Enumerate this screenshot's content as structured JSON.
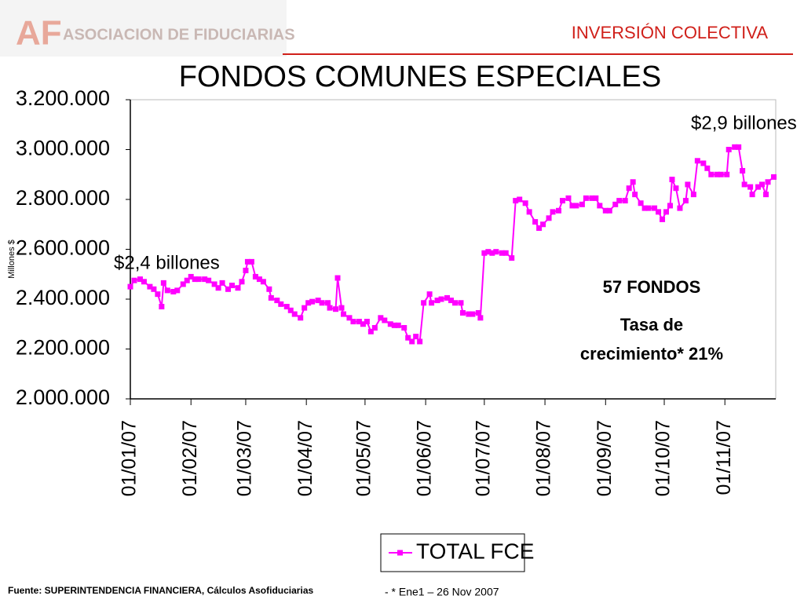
{
  "header": {
    "logo_mark": "AF",
    "logo_text": "ASOCIACION DE FIDUCIARIAS",
    "section": "INVERSIÓN COLECTIVA"
  },
  "footer": {
    "source": "Fuente: SUPERINTENDENCIA FINANCIERA, Cálculos Asofiduciarias",
    "note": "- * Ene1 – 26 Nov 2007"
  },
  "chart_data": {
    "type": "line",
    "title": "FONDOS COMUNES ESPECIALES",
    "y_label": "Millones $",
    "annotations": [
      "$2,4 billones",
      "$2,9 billones"
    ],
    "text_box": [
      "57 FONDOS",
      "Tasa de",
      "crecimiento* 21%"
    ],
    "legend": "bottom",
    "marker": "square",
    "xlim": [
      "2007-01-01",
      "2007-11-27"
    ],
    "xticks": [
      {
        "value": "2007-01-01",
        "label": "01/01/07"
      },
      {
        "value": "2007-02-01",
        "label": "01/02/07"
      },
      {
        "value": "2007-03-01",
        "label": "01/03/07"
      },
      {
        "value": "2007-04-01",
        "label": "01/04/07"
      },
      {
        "value": "2007-05-01",
        "label": "01/05/07"
      },
      {
        "value": "2007-06-01",
        "label": "01/06/07"
      },
      {
        "value": "2007-07-01",
        "label": "01/07/07"
      },
      {
        "value": "2007-08-01",
        "label": "01/08/07"
      },
      {
        "value": "2007-09-01",
        "label": "01/09/07"
      },
      {
        "value": "2007-10-01",
        "label": "01/10/07"
      },
      {
        "value": "2007-11-01",
        "label": "01/11/07"
      }
    ],
    "ylim": [
      2000000,
      3200000
    ],
    "yticks": [
      {
        "value": 2000000,
        "label": "2.000.000"
      },
      {
        "value": 2200000,
        "label": "2.200.000"
      },
      {
        "value": 2400000,
        "label": "2.400.000"
      },
      {
        "value": 2600000,
        "label": "2.600.000"
      },
      {
        "value": 2800000,
        "label": "2.800.000"
      },
      {
        "value": 3000000,
        "label": "3.000.000"
      },
      {
        "value": 3200000,
        "label": "3.200.000"
      }
    ],
    "x": [
      "2007-01-01",
      "2007-01-03",
      "2007-01-06",
      "2007-01-08",
      "2007-01-11",
      "2007-01-13",
      "2007-01-15",
      "2007-01-17",
      "2007-01-18",
      "2007-01-20",
      "2007-01-23",
      "2007-01-25",
      "2007-01-28",
      "2007-01-30",
      "2007-02-01",
      "2007-02-03",
      "2007-02-05",
      "2007-02-08",
      "2007-02-10",
      "2007-02-13",
      "2007-02-15",
      "2007-02-17",
      "2007-02-20",
      "2007-02-22",
      "2007-02-25",
      "2007-02-27",
      "2007-03-01",
      "2007-03-02",
      "2007-03-04",
      "2007-03-06",
      "2007-03-08",
      "2007-03-10",
      "2007-03-13",
      "2007-03-14",
      "2007-03-17",
      "2007-03-19",
      "2007-03-22",
      "2007-03-24",
      "2007-03-26",
      "2007-03-29",
      "2007-03-31",
      "2007-04-02",
      "2007-04-04",
      "2007-04-07",
      "2007-04-09",
      "2007-04-12",
      "2007-04-13",
      "2007-04-16",
      "2007-04-17",
      "2007-04-19",
      "2007-04-20",
      "2007-04-23",
      "2007-04-25",
      "2007-04-28",
      "2007-04-30",
      "2007-05-02",
      "2007-05-04",
      "2007-05-06",
      "2007-05-09",
      "2007-05-11",
      "2007-05-14",
      "2007-05-16",
      "2007-05-18",
      "2007-05-21",
      "2007-05-23",
      "2007-05-25",
      "2007-05-27",
      "2007-05-29",
      "2007-05-31",
      "2007-06-03",
      "2007-06-04",
      "2007-06-07",
      "2007-06-09",
      "2007-06-12",
      "2007-06-14",
      "2007-06-16",
      "2007-06-19",
      "2007-06-20",
      "2007-06-23",
      "2007-06-25",
      "2007-06-28",
      "2007-06-29",
      "2007-07-01",
      "2007-07-03",
      "2007-07-05",
      "2007-07-07",
      "2007-07-10",
      "2007-07-12",
      "2007-07-15",
      "2007-07-17",
      "2007-07-19",
      "2007-07-22",
      "2007-07-24",
      "2007-07-27",
      "2007-07-29",
      "2007-07-31",
      "2007-08-03",
      "2007-08-05",
      "2007-08-08",
      "2007-08-10",
      "2007-08-13",
      "2007-08-15",
      "2007-08-17",
      "2007-08-20",
      "2007-08-22",
      "2007-08-25",
      "2007-08-27",
      "2007-08-29",
      "2007-09-01",
      "2007-09-03",
      "2007-09-06",
      "2007-09-08",
      "2007-09-11",
      "2007-09-13",
      "2007-09-15",
      "2007-09-16",
      "2007-09-19",
      "2007-09-21",
      "2007-09-23",
      "2007-09-26",
      "2007-09-28",
      "2007-09-30",
      "2007-10-02",
      "2007-10-04",
      "2007-10-05",
      "2007-10-07",
      "2007-10-09",
      "2007-10-12",
      "2007-10-13",
      "2007-10-16",
      "2007-10-18",
      "2007-10-21",
      "2007-10-23",
      "2007-10-25",
      "2007-10-28",
      "2007-10-30",
      "2007-11-02",
      "2007-11-03",
      "2007-11-06",
      "2007-11-08",
      "2007-11-10",
      "2007-11-11",
      "2007-11-14",
      "2007-11-15",
      "2007-11-18",
      "2007-11-20",
      "2007-11-22",
      "2007-11-23",
      "2007-11-26"
    ],
    "series": [
      {
        "name": "TOTAL FCE",
        "color": "#ff00ff",
        "values": [
          2450000,
          2475000,
          2480000,
          2470000,
          2450000,
          2440000,
          2420000,
          2370000,
          2465000,
          2435000,
          2430000,
          2435000,
          2460000,
          2475000,
          2490000,
          2480000,
          2480000,
          2480000,
          2475000,
          2460000,
          2445000,
          2465000,
          2440000,
          2455000,
          2445000,
          2470000,
          2515000,
          2550000,
          2550000,
          2490000,
          2480000,
          2470000,
          2440000,
          2405000,
          2395000,
          2380000,
          2370000,
          2355000,
          2340000,
          2325000,
          2365000,
          2385000,
          2390000,
          2395000,
          2385000,
          2385000,
          2365000,
          2360000,
          2485000,
          2365000,
          2340000,
          2325000,
          2310000,
          2310000,
          2300000,
          2310000,
          2270000,
          2285000,
          2325000,
          2315000,
          2300000,
          2295000,
          2295000,
          2285000,
          2245000,
          2230000,
          2250000,
          2230000,
          2385000,
          2420000,
          2385000,
          2395000,
          2400000,
          2405000,
          2395000,
          2385000,
          2385000,
          2345000,
          2340000,
          2340000,
          2345000,
          2325000,
          2585000,
          2590000,
          2585000,
          2590000,
          2585000,
          2585000,
          2565000,
          2795000,
          2800000,
          2785000,
          2750000,
          2710000,
          2685000,
          2700000,
          2725000,
          2750000,
          2755000,
          2795000,
          2805000,
          2775000,
          2775000,
          2780000,
          2805000,
          2805000,
          2805000,
          2775000,
          2755000,
          2755000,
          2780000,
          2795000,
          2795000,
          2845000,
          2870000,
          2820000,
          2785000,
          2765000,
          2765000,
          2765000,
          2750000,
          2720000,
          2750000,
          2775000,
          2880000,
          2845000,
          2765000,
          2795000,
          2860000,
          2820000,
          2955000,
          2945000,
          2925000,
          2900000,
          2900000,
          2900000,
          2900000,
          3000000,
          3010000,
          3010000,
          2915000,
          2860000,
          2850000,
          2820000,
          2850000,
          2860000,
          2820000,
          2870000,
          2890000
        ]
      }
    ]
  }
}
